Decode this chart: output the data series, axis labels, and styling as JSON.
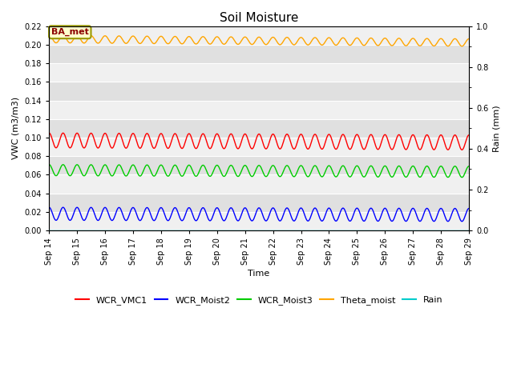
{
  "title": "Soil Moisture",
  "xlabel": "Time",
  "ylabel_left": "VWC (m3/m3)",
  "ylabel_right": "Rain (mm)",
  "ylim_left": [
    0,
    0.22
  ],
  "ylim_right": [
    0.0,
    1.0
  ],
  "station_label": "BA_met",
  "background_color": "#ffffff",
  "plot_bg_color": "#f0f0f0",
  "series": {
    "WCR_VMC1": {
      "color": "#ff0000",
      "mean": 0.097,
      "amplitude": 0.008,
      "period_days": 0.5,
      "phase": 1.57,
      "trend": -0.00015
    },
    "WCR_Moist2": {
      "color": "#0000ff",
      "mean": 0.018,
      "amplitude": 0.007,
      "period_days": 0.5,
      "phase": 1.57,
      "trend": -8e-05
    },
    "WCR_Moist3": {
      "color": "#00cc00",
      "mean": 0.065,
      "amplitude": 0.006,
      "period_days": 0.5,
      "phase": 1.57,
      "trend": -0.00012
    },
    "Theta_moist": {
      "color": "#ffa500",
      "mean": 0.206,
      "amplitude": 0.004,
      "period_days": 0.5,
      "phase": 1.57,
      "trend": -0.00025
    },
    "Rain": {
      "color": "#00cccc",
      "mean": 0.0,
      "amplitude": 0.0,
      "period_days": 1.0,
      "phase": 0.0,
      "trend": 0.0
    }
  },
  "x_tick_labels": [
    "Sep 14",
    "Sep 15",
    "Sep 16",
    "Sep 17",
    "Sep 18",
    "Sep 19",
    "Sep 20",
    "Sep 21",
    "Sep 22",
    "Sep 23",
    "Sep 24",
    "Sep 25",
    "Sep 26",
    "Sep 27",
    "Sep 28",
    "Sep 29"
  ],
  "yticks_left": [
    0.0,
    0.02,
    0.04,
    0.06,
    0.08,
    0.1,
    0.12,
    0.14,
    0.16,
    0.18,
    0.2,
    0.22
  ],
  "yticks_right": [
    0.0,
    0.2,
    0.4,
    0.6,
    0.8,
    1.0
  ],
  "band_colors": [
    "#f0f0f0",
    "#e0e0e0"
  ],
  "grid_color": "#ffffff",
  "title_fontsize": 11,
  "axis_label_fontsize": 8,
  "tick_fontsize": 7,
  "legend_fontsize": 8
}
